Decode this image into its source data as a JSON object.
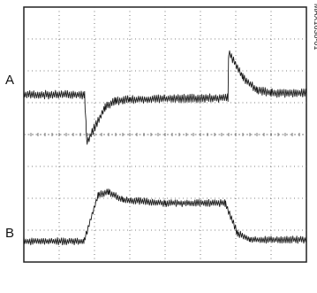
{
  "figure_id": "MAX1638-01",
  "chart_data": {
    "type": "line",
    "title": "",
    "xlabel": "",
    "ylabel": "",
    "grid": true,
    "x_divisions": 8,
    "y_divisions": 8,
    "xlim": [
      0,
      8
    ],
    "ylim": [
      0,
      8
    ],
    "series": [
      {
        "name": "A",
        "trace_color": "#1a1a1a",
        "noise_amplitude": 0.12,
        "points": [
          [
            0,
            5.25
          ],
          [
            1.72,
            5.25
          ],
          [
            1.76,
            4.3
          ],
          [
            1.78,
            3.75
          ],
          [
            2.3,
            4.85
          ],
          [
            2.6,
            5.05
          ],
          [
            3.0,
            5.1
          ],
          [
            5.78,
            5.15
          ],
          [
            5.8,
            6.6
          ],
          [
            6.2,
            5.8
          ],
          [
            6.6,
            5.4
          ],
          [
            7.0,
            5.3
          ],
          [
            8,
            5.3
          ]
        ]
      },
      {
        "name": "B",
        "trace_color": "#1a1a1a",
        "noise_amplitude": 0.1,
        "points": [
          [
            0,
            0.65
          ],
          [
            1.7,
            0.65
          ],
          [
            2.1,
            2.1
          ],
          [
            2.4,
            2.2
          ],
          [
            2.8,
            1.95
          ],
          [
            4.0,
            1.85
          ],
          [
            5.7,
            1.85
          ],
          [
            6.05,
            0.9
          ],
          [
            6.4,
            0.7
          ],
          [
            8,
            0.7
          ]
        ]
      }
    ]
  }
}
